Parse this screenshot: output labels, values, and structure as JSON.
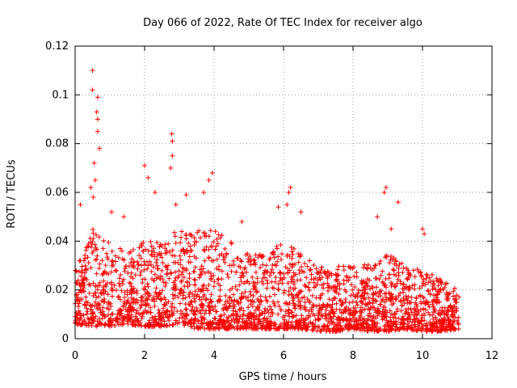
{
  "chart_data": {
    "type": "scatter",
    "title": "Day 066 of 2022, Rate Of TEC Index for receiver algo",
    "xlabel": "GPS time / hours",
    "ylabel": "ROTI / TECUs",
    "xlim": [
      0,
      12
    ],
    "ylim": [
      0,
      0.12
    ],
    "grid": true,
    "marker": "+",
    "xticks": [
      0,
      2,
      4,
      6,
      8,
      10,
      12
    ],
    "yticks": [
      0,
      0.02,
      0.04,
      0.06,
      0.08,
      0.1,
      0.12
    ],
    "xtick_labels": [
      "0",
      "2",
      "4",
      "6",
      "8",
      "10",
      "12"
    ],
    "ytick_labels": [
      "0",
      "0.02",
      "0.04",
      "0.06",
      "0.08",
      "0.1",
      "0.12"
    ],
    "series": [
      {
        "name": "ROTI",
        "color": "#ff0000",
        "envelope_x": [
          0,
          0.5,
          1,
          1.5,
          2,
          2.5,
          3,
          3.5,
          4,
          4.5,
          5,
          5.5,
          6,
          6.5,
          7,
          7.5,
          8,
          8.5,
          9,
          9.5,
          10,
          10.5,
          11.05
        ],
        "envelope_lo": [
          0.006,
          0.005,
          0.005,
          0.006,
          0.005,
          0.005,
          0.006,
          0.004,
          0.004,
          0.004,
          0.004,
          0.004,
          0.004,
          0.004,
          0.003,
          0.003,
          0.004,
          0.003,
          0.003,
          0.004,
          0.003,
          0.003,
          0.004
        ],
        "envelope_hi": [
          0.028,
          0.045,
          0.04,
          0.035,
          0.04,
          0.04,
          0.045,
          0.045,
          0.045,
          0.04,
          0.035,
          0.035,
          0.04,
          0.035,
          0.03,
          0.03,
          0.03,
          0.032,
          0.035,
          0.03,
          0.028,
          0.025,
          0.02
        ],
        "peaks": [
          {
            "x": 0.5,
            "y": 0.11
          },
          {
            "x": 0.5,
            "y": 0.102
          },
          {
            "x": 0.65,
            "y": 0.099
          },
          {
            "x": 0.62,
            "y": 0.093
          },
          {
            "x": 0.65,
            "y": 0.09
          },
          {
            "x": 0.65,
            "y": 0.085
          },
          {
            "x": 0.7,
            "y": 0.078
          },
          {
            "x": 0.55,
            "y": 0.072
          },
          {
            "x": 0.58,
            "y": 0.065
          },
          {
            "x": 0.45,
            "y": 0.062
          },
          {
            "x": 0.52,
            "y": 0.058
          },
          {
            "x": 0.15,
            "y": 0.055
          },
          {
            "x": 2.78,
            "y": 0.084
          },
          {
            "x": 2.8,
            "y": 0.081
          },
          {
            "x": 2.8,
            "y": 0.075
          },
          {
            "x": 2.75,
            "y": 0.07
          },
          {
            "x": 2.0,
            "y": 0.071
          },
          {
            "x": 2.1,
            "y": 0.066
          },
          {
            "x": 3.95,
            "y": 0.068
          },
          {
            "x": 3.85,
            "y": 0.065
          },
          {
            "x": 3.7,
            "y": 0.06
          },
          {
            "x": 3.2,
            "y": 0.059
          },
          {
            "x": 2.3,
            "y": 0.06
          },
          {
            "x": 2.9,
            "y": 0.055
          },
          {
            "x": 6.2,
            "y": 0.062
          },
          {
            "x": 6.15,
            "y": 0.06
          },
          {
            "x": 6.1,
            "y": 0.055
          },
          {
            "x": 5.85,
            "y": 0.054
          },
          {
            "x": 6.5,
            "y": 0.052
          },
          {
            "x": 8.95,
            "y": 0.062
          },
          {
            "x": 8.9,
            "y": 0.06
          },
          {
            "x": 9.3,
            "y": 0.056
          },
          {
            "x": 8.7,
            "y": 0.05
          },
          {
            "x": 9.1,
            "y": 0.045
          },
          {
            "x": 10.0,
            "y": 0.045
          },
          {
            "x": 10.05,
            "y": 0.043
          },
          {
            "x": 1.05,
            "y": 0.052
          },
          {
            "x": 1.4,
            "y": 0.05
          },
          {
            "x": 4.8,
            "y": 0.048
          }
        ]
      }
    ]
  }
}
